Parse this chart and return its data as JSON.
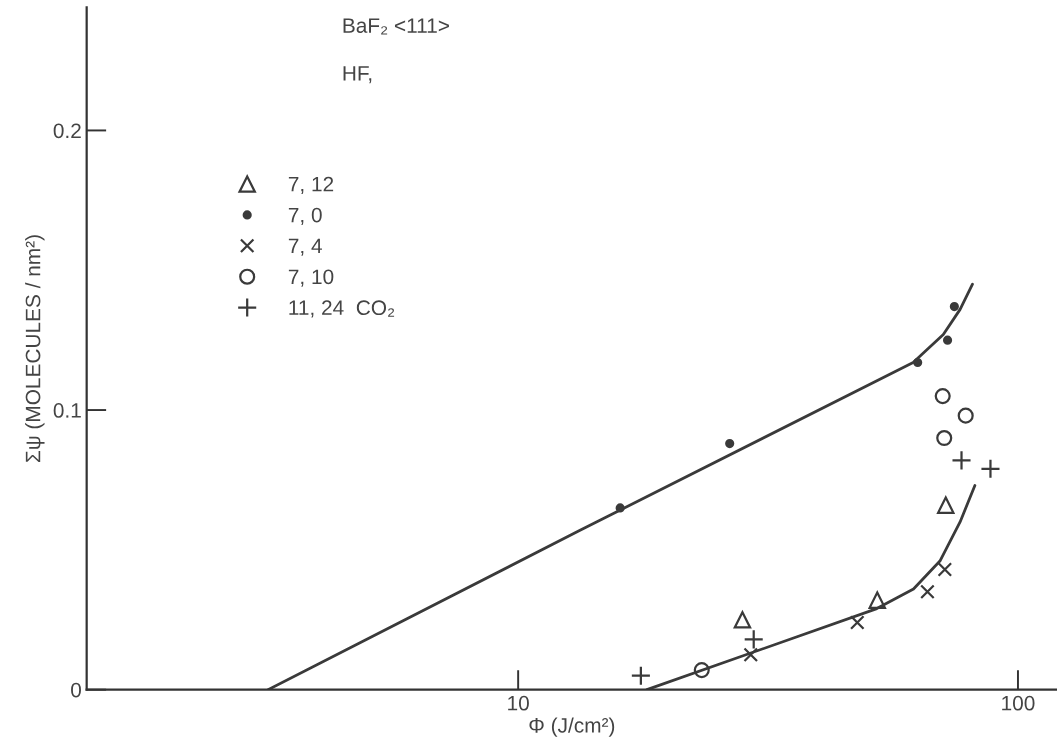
{
  "chart_data": {
    "type": "scatter",
    "xlabel": "Φ (J/cm²)",
    "ylabel": "Σψ (MOLECULES / nm²)",
    "annotations": [
      "BaF₂ <111>",
      "HF,"
    ],
    "log": "x",
    "xlim": [
      1.37,
      119.7
    ],
    "ylim": [
      0,
      0.244
    ],
    "xticks": [
      10,
      100
    ],
    "yticks": [
      0,
      0.1,
      0.2
    ],
    "grid": false,
    "legend": "top left",
    "series": [
      {
        "name": "7, 12",
        "color": "#3a3a3a",
        "marker": "triangle",
        "x": [
          28.1,
          52.3,
          71.7
        ],
        "values": [
          0.025,
          0.032,
          0.066
        ]
      },
      {
        "name": "7, 0",
        "color": "#3a3a3a",
        "marker": "point",
        "x": [
          16.0,
          26.5,
          63.0,
          72.3,
          74.6
        ],
        "values": [
          0.065,
          0.088,
          0.117,
          0.125,
          0.137
        ]
      },
      {
        "name": "7, 4",
        "color": "#3a3a3a",
        "marker": "cross",
        "x": [
          29.2,
          47.7,
          65.9,
          71.4
        ],
        "values": [
          0.0125,
          0.024,
          0.035,
          0.043
        ]
      },
      {
        "name": "7, 10",
        "color": "#3a3a3a",
        "marker": "circle",
        "x": [
          23.3,
          70.7,
          71.2,
          78.6
        ],
        "values": [
          0.007,
          0.105,
          0.09,
          0.098
        ]
      },
      {
        "name": "11, 24  CO₂",
        "color": "#3a3a3a",
        "marker": "plus",
        "x": [
          17.6,
          29.6,
          77.1,
          88.1
        ],
        "values": [
          0.005,
          0.018,
          0.082,
          0.079
        ]
      },
      {
        "type": "line",
        "color": "#3a3a3a",
        "x": [
          3.16,
          13.3,
          61.7,
          70.9,
          76.6,
          81.1
        ],
        "values": [
          0,
          0.057,
          0.117,
          0.127,
          0.136,
          0.145
        ]
      },
      {
        "type": "line",
        "color": "#3a3a3a",
        "x": [
          18.1,
          52.2,
          61.8,
          69.8,
          76.6,
          82.0
        ],
        "values": [
          0,
          0.029,
          0.036,
          0.046,
          0.06,
          0.073
        ]
      }
    ]
  }
}
